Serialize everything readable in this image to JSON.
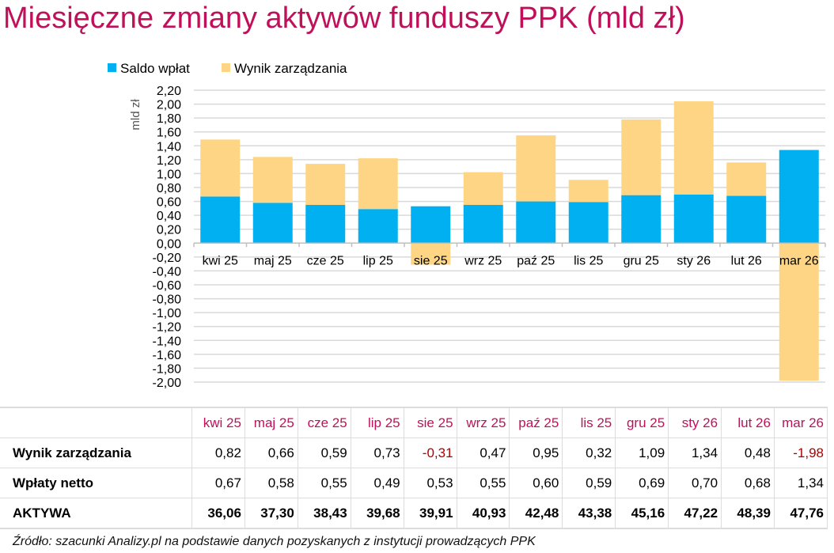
{
  "title": "Miesięczne zmiany aktywów funduszy PPK (mld zł)",
  "chart_data": {
    "type": "bar",
    "stacked": true,
    "categories": [
      "kwi 25",
      "maj 25",
      "cze 25",
      "lip 25",
      "sie 25",
      "wrz 25",
      "paź 25",
      "lis 25",
      "gru 25",
      "sty 26",
      "lut 26",
      "mar 26"
    ],
    "series": [
      {
        "name": "Saldo wpłat",
        "color": "#00b0f0",
        "values": [
          0.67,
          0.58,
          0.55,
          0.49,
          0.53,
          0.55,
          0.6,
          0.59,
          0.69,
          0.7,
          0.68,
          1.34
        ]
      },
      {
        "name": "Wynik zarządzania",
        "color": "#fdd585",
        "values": [
          0.82,
          0.66,
          0.59,
          0.73,
          -0.31,
          0.47,
          0.95,
          0.32,
          1.09,
          1.34,
          0.48,
          -1.98
        ]
      }
    ],
    "ylabel": "mld zł",
    "ylim": [
      -2.0,
      2.2
    ],
    "ytick_step": 0.2,
    "grid": true,
    "legend": "top"
  },
  "table": {
    "headers": [
      "kwi 25",
      "maj 25",
      "cze 25",
      "lip 25",
      "sie 25",
      "wrz 25",
      "paź 25",
      "lis 25",
      "gru 25",
      "sty 26",
      "lut 26",
      "mar 26"
    ],
    "rows": [
      {
        "label": "Wynik zarządzania",
        "values": [
          "0,82",
          "0,66",
          "0,59",
          "0,73",
          "-0,31",
          "0,47",
          "0,95",
          "0,32",
          "1,09",
          "1,34",
          "0,48",
          "-1,98"
        ]
      },
      {
        "label": "Wpłaty netto",
        "values": [
          "0,67",
          "0,58",
          "0,55",
          "0,49",
          "0,53",
          "0,55",
          "0,60",
          "0,59",
          "0,69",
          "0,70",
          "0,68",
          "1,34"
        ]
      },
      {
        "label": "AKTYWA",
        "values": [
          "36,06",
          "37,30",
          "38,43",
          "39,68",
          "39,91",
          "40,93",
          "42,48",
          "43,38",
          "45,16",
          "47,22",
          "48,39",
          "47,76"
        ]
      }
    ]
  },
  "source": "Źródło: szacunki Analizy.pl na podstawie danych pozyskanych z instytucji prowadzących PPK"
}
